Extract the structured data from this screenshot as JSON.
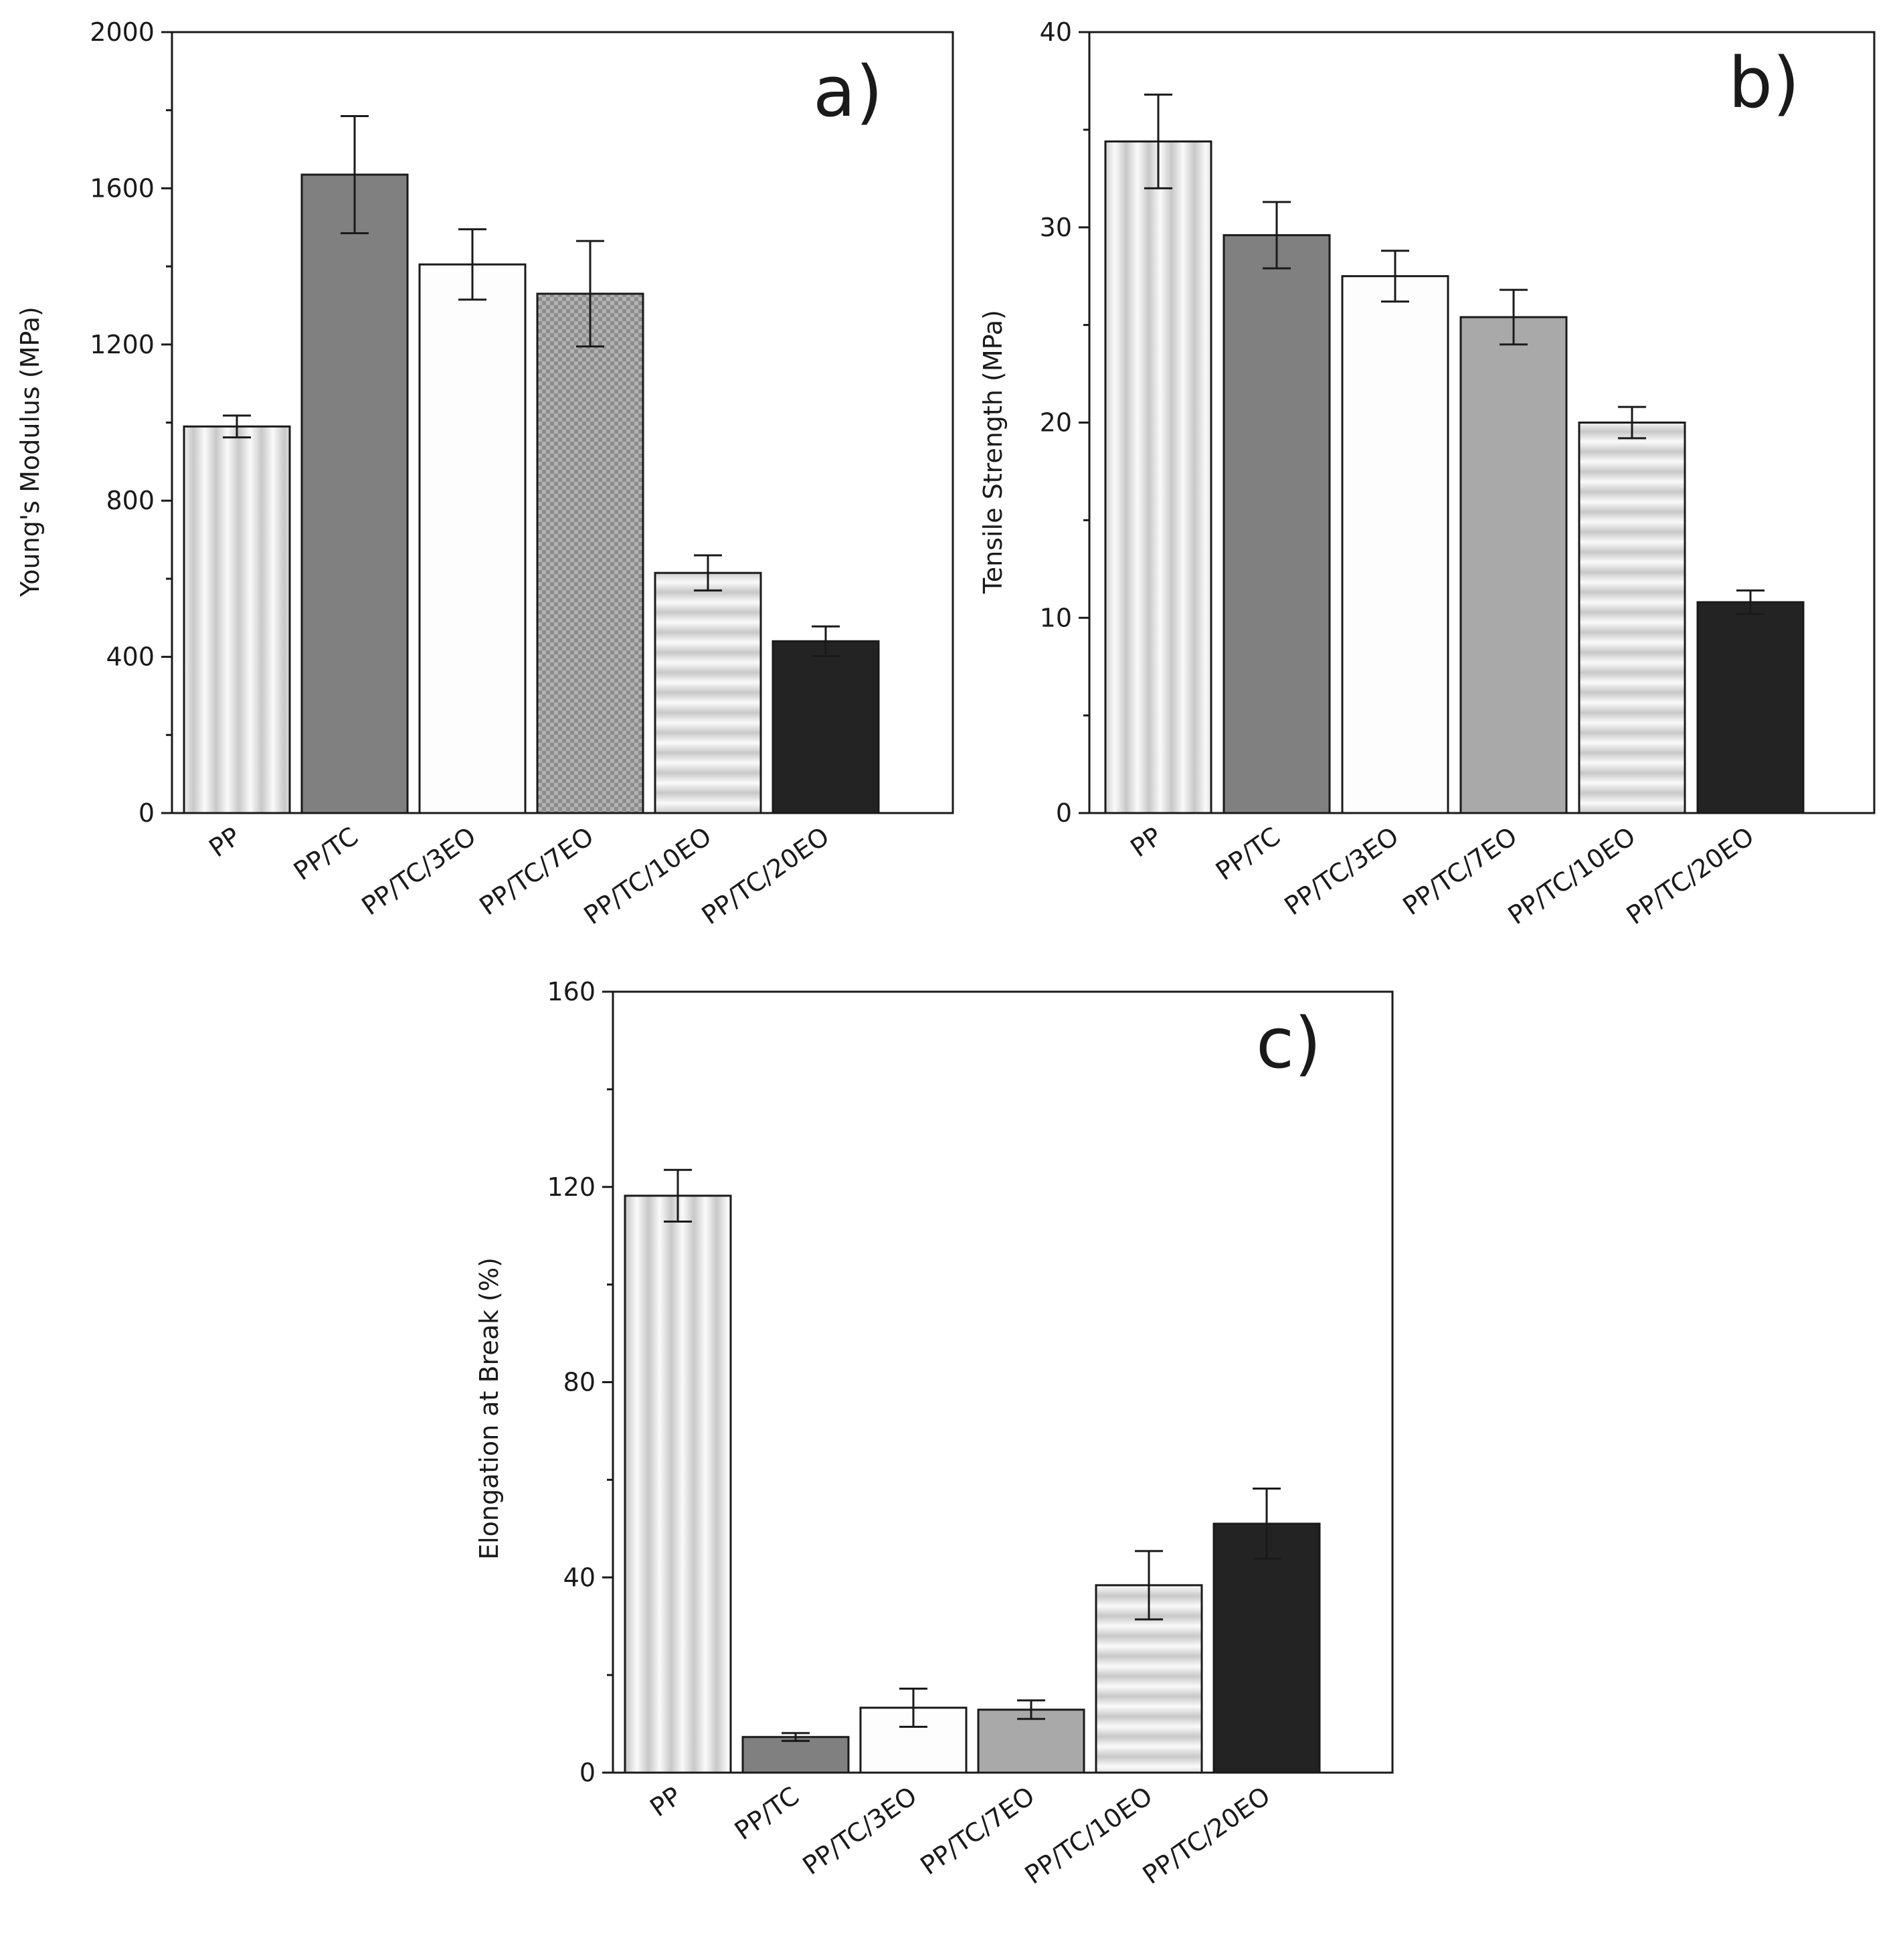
{
  "colors": {
    "axis": "#1a1a1a",
    "background": "#ffffff",
    "stripe_light": "#fafafa",
    "stripe_mid": "#c8c8c8",
    "dark_gray": "#808080",
    "white": "#fdfdfd",
    "mid_gray": "#a9a9a9",
    "checker_a": "#b3b3b3",
    "checker_b": "#8c8c8c",
    "black": "#232323"
  },
  "chart_data": [
    {
      "id": "a",
      "type": "bar",
      "panel_letter": "a)",
      "title": "",
      "xlabel": "",
      "ylabel": "Young's Modulus (MPa)",
      "ylim": [
        0,
        2000
      ],
      "major_ticks": [
        0,
        400,
        800,
        1200,
        1600,
        2000
      ],
      "minor_ticks": [
        200,
        600,
        1000,
        1400,
        1800
      ],
      "tick_labels": [
        "0",
        "400",
        "800",
        "1200",
        "1600",
        "2000"
      ],
      "categories": [
        "PP",
        "PP/TC",
        "PP/TC/3EO",
        "PP/TC/7EO",
        "PP/TC/10EO",
        "PP/TC/20EO"
      ],
      "patterns": [
        "vstripe",
        "darkgray",
        "white",
        "checker",
        "hstripe",
        "black"
      ],
      "values": [
        990,
        1635,
        1405,
        1330,
        615,
        440
      ],
      "errors": [
        28,
        150,
        90,
        135,
        45,
        38
      ],
      "grid": false
    },
    {
      "id": "b",
      "type": "bar",
      "panel_letter": "b)",
      "title": "",
      "xlabel": "",
      "ylabel": "Tensile Strength (MPa)",
      "ylim": [
        0,
        40
      ],
      "major_ticks": [
        0,
        10,
        20,
        30,
        40
      ],
      "minor_ticks": [
        5,
        15,
        25,
        35
      ],
      "tick_labels": [
        "0",
        "10",
        "20",
        "30",
        "40"
      ],
      "categories": [
        "PP",
        "PP/TC",
        "PP/TC/3EO",
        "PP/TC/7EO",
        "PP/TC/10EO",
        "PP/TC/20EO"
      ],
      "patterns": [
        "vstripe",
        "darkgray",
        "white",
        "midgray",
        "hstripe",
        "black"
      ],
      "values": [
        34.4,
        29.6,
        27.5,
        25.4,
        20.0,
        10.8
      ],
      "errors": [
        2.4,
        1.7,
        1.3,
        1.4,
        0.8,
        0.6
      ],
      "grid": false
    },
    {
      "id": "c",
      "type": "bar",
      "panel_letter": "c)",
      "title": "",
      "xlabel": "",
      "ylabel": "Elongation at Break (%)",
      "ylim": [
        0,
        160
      ],
      "major_ticks": [
        0,
        40,
        80,
        120,
        160
      ],
      "minor_ticks": [
        20,
        60,
        100,
        140
      ],
      "tick_labels": [
        "0",
        "40",
        "80",
        "120",
        "160"
      ],
      "categories": [
        "PP",
        "PP/TC",
        "PP/TC/3EO",
        "PP/TC/7EO",
        "PP/TC/10EO",
        "PP/TC/20EO"
      ],
      "patterns": [
        "vstripe",
        "darkgray",
        "white",
        "midgray",
        "hstripe",
        "black"
      ],
      "values": [
        118.2,
        7.3,
        13.3,
        12.9,
        38.4,
        51.0
      ],
      "errors": [
        5.3,
        0.8,
        3.9,
        1.9,
        7.0,
        7.2
      ],
      "grid": false
    }
  ]
}
